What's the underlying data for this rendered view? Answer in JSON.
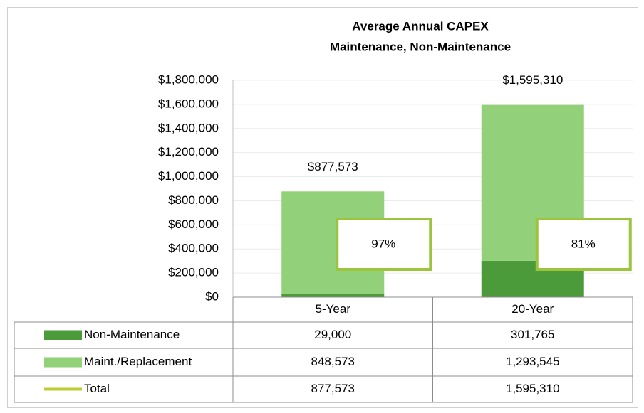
{
  "chart_data": {
    "type": "bar",
    "stacked": true,
    "title": "Average Annual CAPEX",
    "subtitle": "Maintenance, Non-Maintenance",
    "categories": [
      "5-Year",
      "20-Year"
    ],
    "series": [
      {
        "name": "Non-Maintenance",
        "color": "#4b9b3a",
        "values": [
          29000,
          301765
        ],
        "table_labels": [
          "29,000",
          "301,765"
        ]
      },
      {
        "name": "Maint./Replacement",
        "color": "#92d07a",
        "values": [
          848573,
          1293545
        ],
        "table_labels": [
          "848,573",
          "1,293,545"
        ]
      },
      {
        "name": "Total",
        "color": "#bccd34",
        "type": "total",
        "values": [
          877573,
          1595310
        ],
        "value_labels": [
          "$877,573",
          "$1,595,310"
        ],
        "table_labels": [
          "877,573",
          "1,595,310"
        ]
      }
    ],
    "annotations": [
      "97%",
      "81%"
    ],
    "annotation_color": "#9cc43c",
    "ylim": [
      0,
      1800000
    ],
    "yticks": [
      {
        "value": 0,
        "label": "$0"
      },
      {
        "value": 200000,
        "label": "$200,000"
      },
      {
        "value": 400000,
        "label": "$400,000"
      },
      {
        "value": 600000,
        "label": "$600,000"
      },
      {
        "value": 800000,
        "label": "$800,000"
      },
      {
        "value": 1000000,
        "label": "$1,000,000"
      },
      {
        "value": 1200000,
        "label": "$1,200,000"
      },
      {
        "value": 1400000,
        "label": "$1,400,000"
      },
      {
        "value": 1600000,
        "label": "$1,600,000"
      },
      {
        "value": 1800000,
        "label": "$1,800,000"
      }
    ],
    "grid": true
  }
}
